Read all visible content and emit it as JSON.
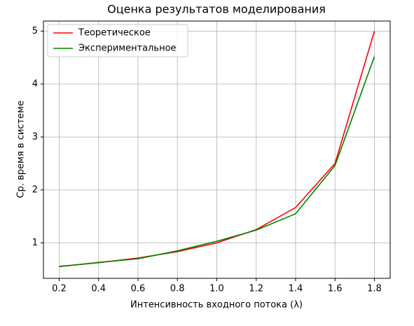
{
  "chart_data": {
    "type": "line",
    "title": "Оценка результатов моделирования",
    "xlabel": "Интенсивность входного потока (λ)",
    "ylabel": "Ср. время в системе",
    "x": [
      0.2,
      0.4,
      0.6,
      0.8,
      1.0,
      1.2,
      1.4,
      1.6,
      1.8
    ],
    "series": [
      {
        "name": "Теоретическое",
        "color": "#ff0000",
        "values": [
          0.556,
          0.625,
          0.714,
          0.833,
          1.0,
          1.25,
          1.667,
          2.5,
          5.0
        ]
      },
      {
        "name": "Экспериментальное",
        "color": "#008000",
        "values": [
          0.55,
          0.63,
          0.7,
          0.85,
          1.03,
          1.24,
          1.55,
          2.46,
          4.52
        ]
      }
    ],
    "xlim": [
      0.12,
      1.88
    ],
    "xticks": [
      0.2,
      0.4,
      0.6,
      0.8,
      {
        "value": 1,
        "label": "1.0"
      },
      1.2,
      1.4,
      1.6,
      1.8
    ],
    "ylim": [
      0.33,
      5.19
    ],
    "yticks": [
      1,
      2,
      3,
      4,
      5
    ],
    "grid": true,
    "legend": "upper-left"
  }
}
